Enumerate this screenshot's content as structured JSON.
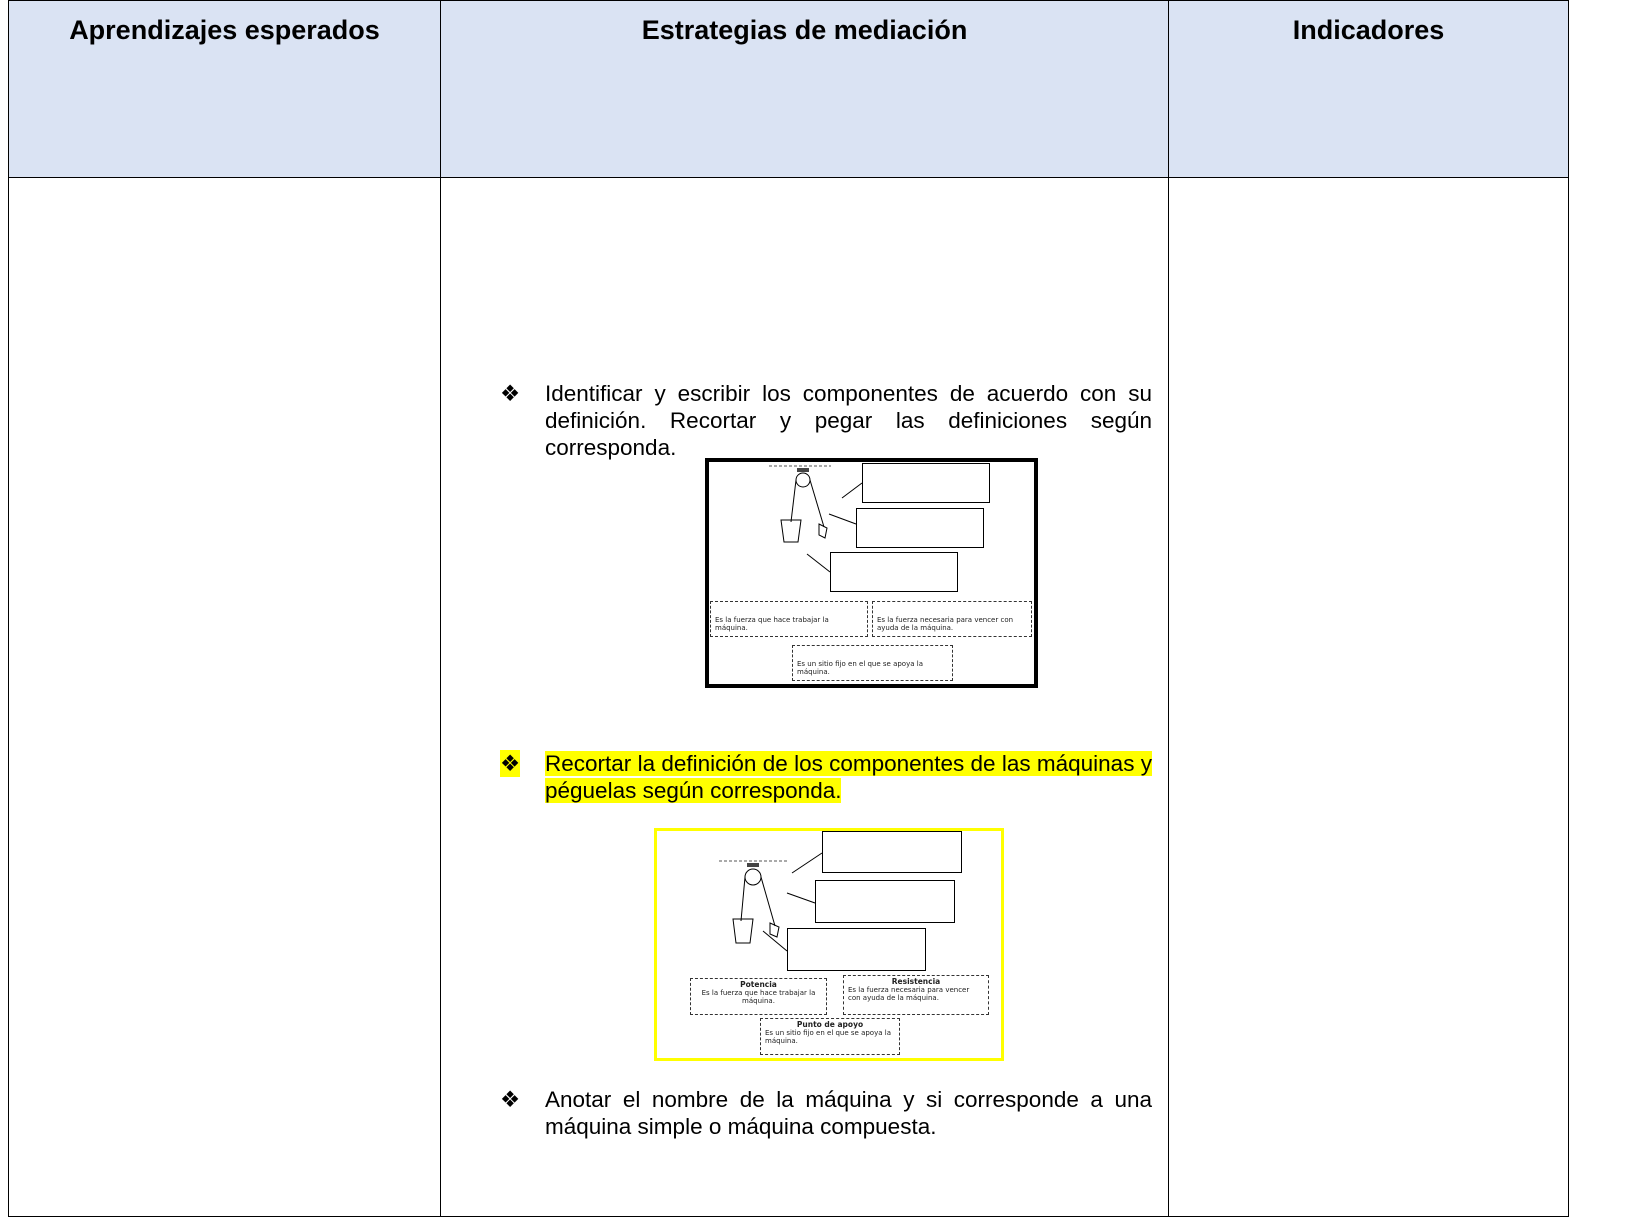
{
  "table": {
    "headers": [
      "Aprendizajes esperados",
      "Estrategias de mediación",
      "Indicadores"
    ],
    "bullets": [
      "Identificar y escribir los componentes de acuerdo con su definición. Recortar y pegar las definiciones según corresponda.",
      "Recortar la definición de los componentes de las máquinas y péguelas según corresponda.",
      "Anotar el nombre de la máquina y si corresponde a una máquina simple o máquina compuesta."
    ]
  },
  "figures": [
    {
      "definitions": [
        {
          "text": "Es la fuerza que hace trabajar la máquina."
        },
        {
          "text": "Es la fuerza necesaria para vencer con ayuda de la máquina."
        },
        {
          "text": "Es un sitio fijo en el que se apoya la máquina."
        }
      ]
    },
    {
      "definitions": [
        {
          "title": "Potencia",
          "text": "Es la fuerza que hace trabajar la máquina."
        },
        {
          "title": "Resistencia",
          "text": "Es la fuerza necesaria para vencer con ayuda de la máquina."
        },
        {
          "title": "Punto de apoyo",
          "text": "Es un sitio fijo en el que se apoya la máquina."
        }
      ]
    }
  ]
}
